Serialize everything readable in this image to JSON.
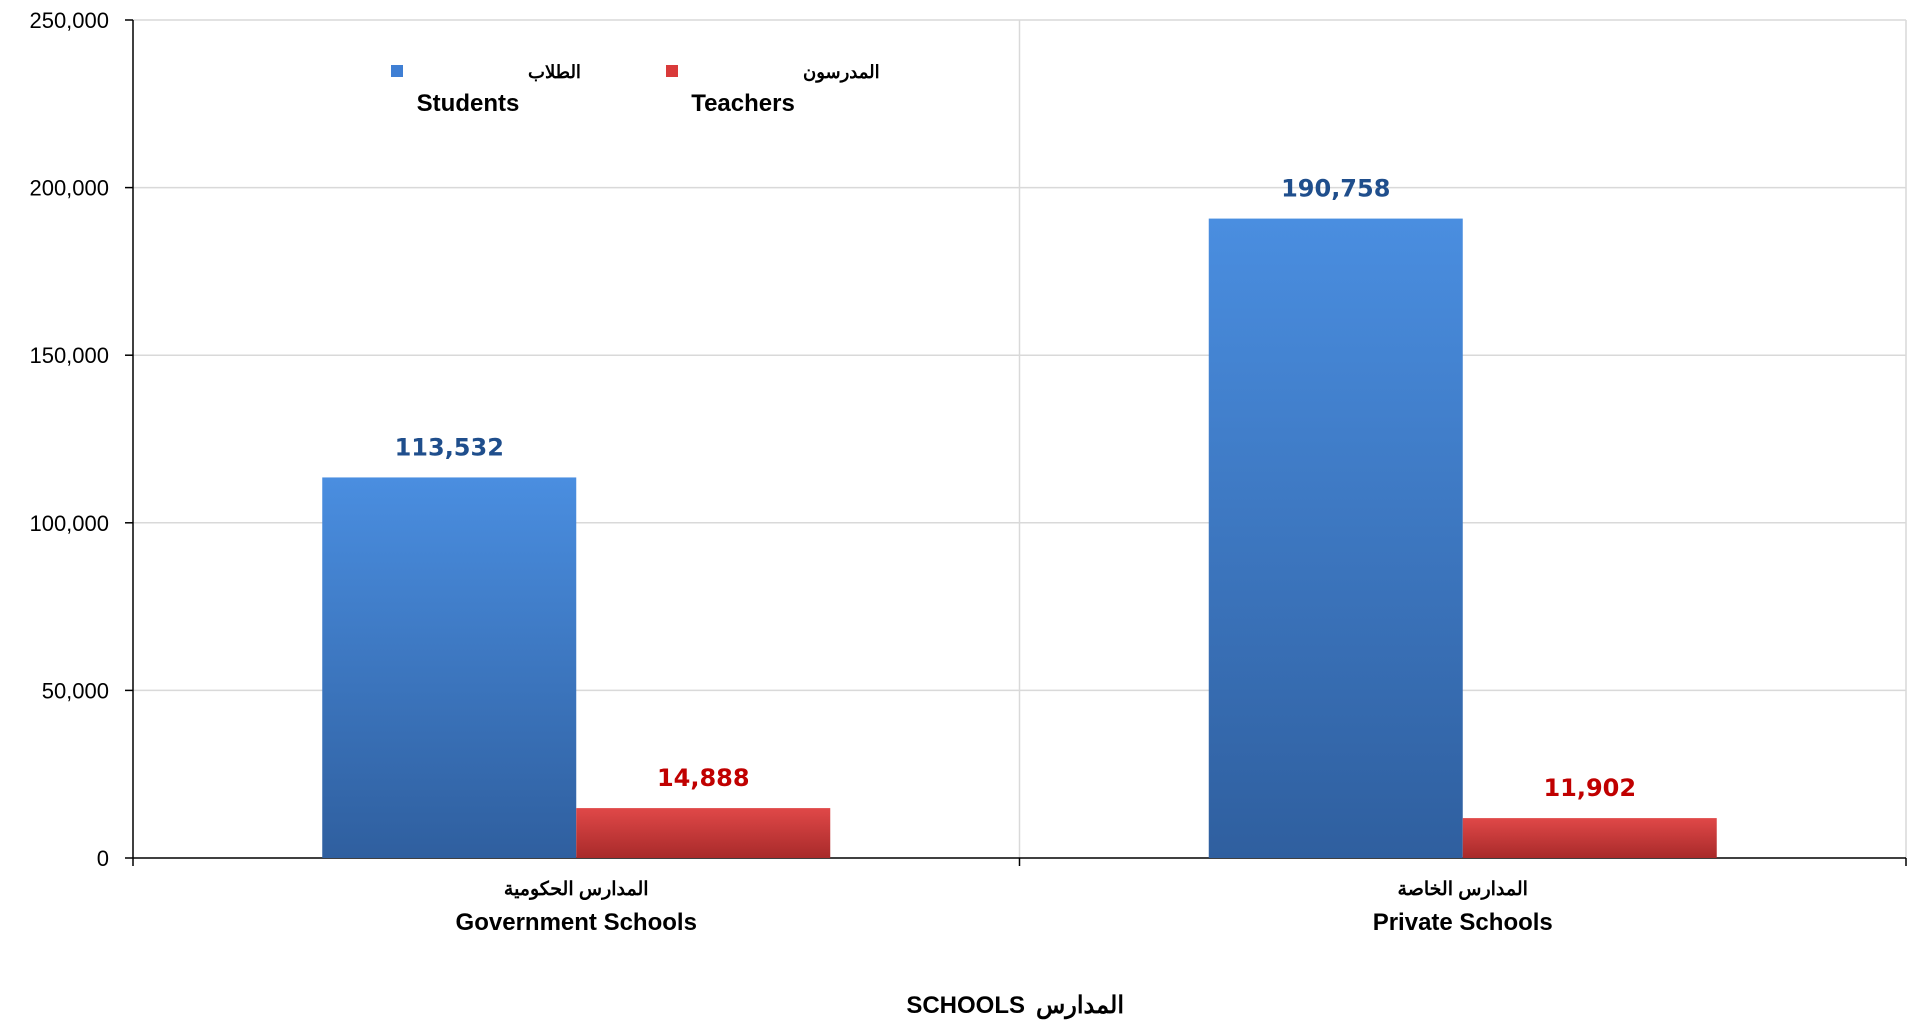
{
  "chart_data": {
    "type": "bar",
    "categories": [
      {
        "ar": "المدارس الحكومية",
        "en": "Government Schools"
      },
      {
        "ar": "المدارس الخاصة",
        "en": "Private Schools"
      }
    ],
    "series": [
      {
        "name_ar": "الطلاب",
        "name_en": "Students",
        "color": "#3f7fd4",
        "label_color": "#1f4e8c",
        "values": [
          113532,
          190758
        ],
        "labels": [
          "113,532",
          "190,758"
        ]
      },
      {
        "name_ar": "المدرسون",
        "name_en": "Teachers",
        "color": "#d93a3a",
        "label_color": "#c00000",
        "values": [
          14888,
          11902
        ],
        "labels": [
          "14,888",
          "11,902"
        ]
      }
    ],
    "ylim": [
      0,
      250000
    ],
    "yticks": [
      0,
      50000,
      100000,
      150000,
      200000,
      250000
    ],
    "ytick_labels": [
      "0",
      "50,000",
      "100,000",
      "150,000",
      "200,000",
      "250,000"
    ],
    "xlabel": {
      "ar": "المدارس",
      "en": "SCHOOLS"
    },
    "grid": true,
    "legend_position": "top-left"
  }
}
